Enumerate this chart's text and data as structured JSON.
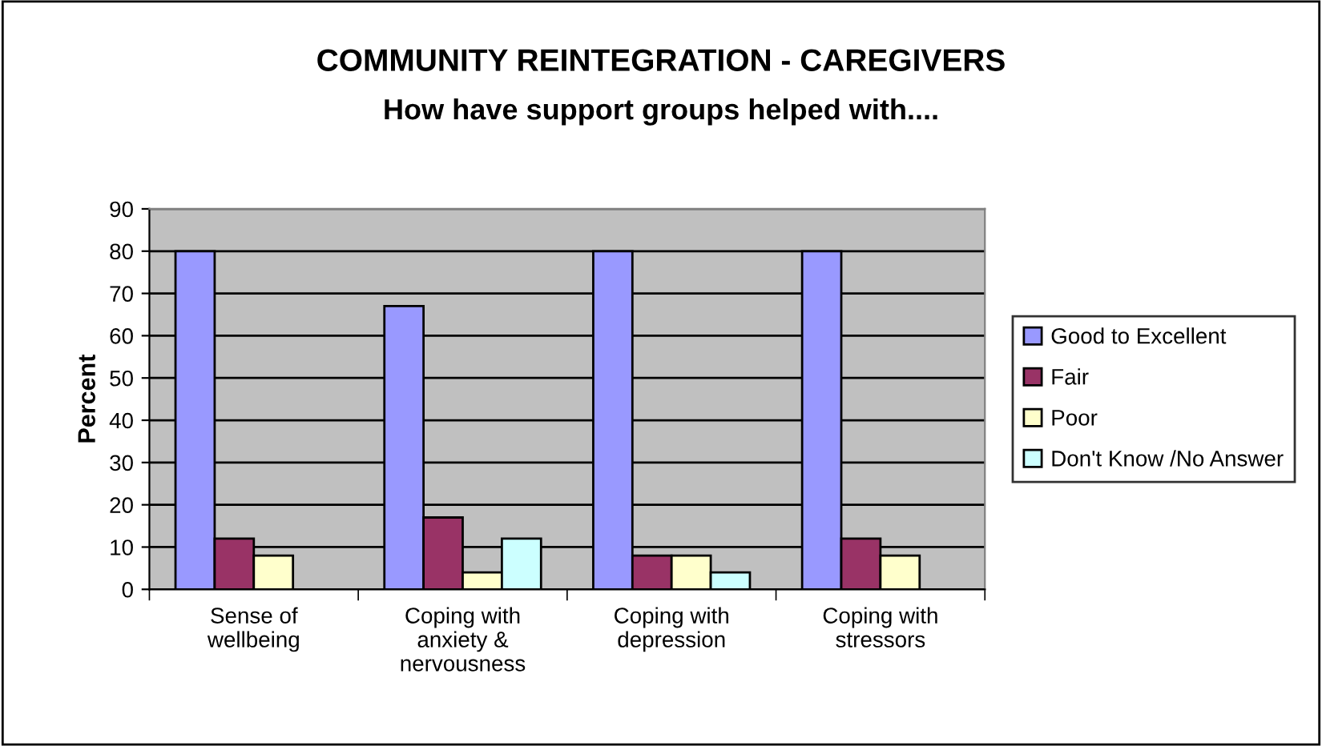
{
  "chart_data": {
    "type": "bar",
    "title": "COMMUNITY REINTEGRATION - CAREGIVERS",
    "subtitle": "How have support groups helped with....",
    "ylabel": "Percent",
    "categories": [
      "Sense of\nwellbeing",
      "Coping with\nanxiety &\nnervousness",
      "Coping with\ndepression",
      "Coping with\nstressors"
    ],
    "series": [
      {
        "name": "Good to Excellent",
        "color": "#9999ff",
        "values": [
          80,
          67,
          80,
          80
        ]
      },
      {
        "name": "Fair",
        "color": "#993366",
        "values": [
          12,
          17,
          8,
          12
        ]
      },
      {
        "name": "Poor",
        "color": "#ffffcc",
        "values": [
          8,
          4,
          8,
          8
        ]
      },
      {
        "name": "Don't Know /No Answer",
        "color": "#ccffff",
        "values": [
          null,
          12,
          4,
          null
        ]
      }
    ],
    "ylim": [
      0,
      90
    ],
    "yticks": [
      0,
      10,
      20,
      30,
      40,
      50,
      60,
      70,
      80,
      90
    ],
    "grid": "y",
    "legend": "right"
  }
}
